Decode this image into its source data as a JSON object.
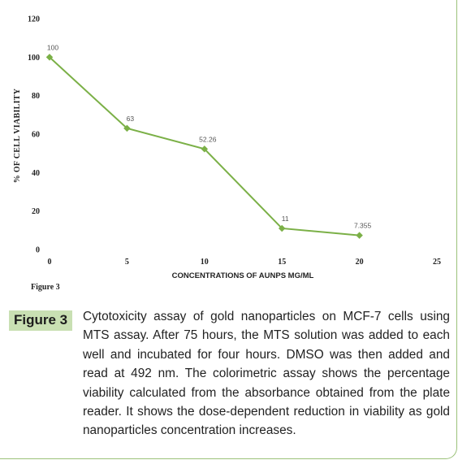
{
  "chart_data": {
    "type": "line",
    "x": [
      0,
      5,
      10,
      15,
      20
    ],
    "series": [
      {
        "values": [
          100,
          63,
          52.26,
          11,
          7.355
        ],
        "labels": [
          "100",
          "63",
          "52.26",
          "11",
          "7.355"
        ],
        "color": "#7bb047"
      }
    ],
    "xlabel": "CONCENTRATIONS OF AUNPS MG/ML",
    "ylabel": "% OF CELL VIABILITY",
    "xlim": [
      0,
      25
    ],
    "ylim": [
      0,
      120
    ],
    "xticks": [
      "0",
      "5",
      "10",
      "15",
      "20",
      "25"
    ],
    "yticks": [
      "0",
      "20",
      "40",
      "60",
      "80",
      "100",
      "120"
    ],
    "grid": false
  },
  "figure_small_label": "Figure 3",
  "figure_badge": "Figure 3",
  "caption": "Cytotoxicity assay of gold nanoparticles on MCF-7 cells using MTS assay. After 75 hours, the MTS solution was added to each well and incubated for four hours. DMSO was then added and read at 492 nm. The colorimetric assay shows the percentage viability calculated from the absorbance obtained from the plate reader. It shows the dose-dependent reduction in viability as gold nanoparticles concentration increases.",
  "colors": {
    "badge_bg": "#c9e0b3",
    "line": "#7bb047",
    "frame": "#9bc27a"
  }
}
